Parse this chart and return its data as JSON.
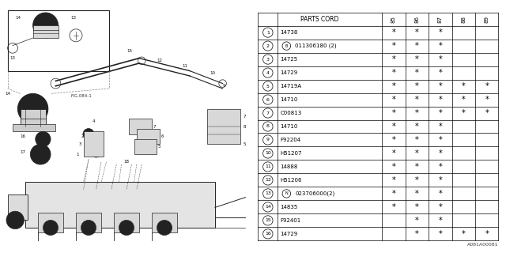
{
  "table_header_label": "PARTS CORD",
  "years": [
    "85",
    "86",
    "87",
    "88",
    "89"
  ],
  "rows": [
    {
      "num": "1",
      "prefix": "",
      "part": "14738",
      "stars": [
        1,
        1,
        1,
        0,
        0
      ]
    },
    {
      "num": "2",
      "prefix": "B",
      "part": "011306180 (2)",
      "stars": [
        1,
        1,
        1,
        0,
        0
      ]
    },
    {
      "num": "3",
      "prefix": "",
      "part": "14725",
      "stars": [
        1,
        1,
        1,
        0,
        0
      ]
    },
    {
      "num": "4",
      "prefix": "",
      "part": "14729",
      "stars": [
        1,
        1,
        1,
        0,
        0
      ]
    },
    {
      "num": "5",
      "prefix": "",
      "part": "14719A",
      "stars": [
        1,
        1,
        1,
        1,
        1
      ]
    },
    {
      "num": "6",
      "prefix": "",
      "part": "14710",
      "stars": [
        1,
        1,
        1,
        1,
        1
      ]
    },
    {
      "num": "7",
      "prefix": "",
      "part": "C00813",
      "stars": [
        1,
        1,
        1,
        1,
        1
      ]
    },
    {
      "num": "8",
      "prefix": "",
      "part": "14710",
      "stars": [
        1,
        1,
        1,
        0,
        0
      ]
    },
    {
      "num": "9",
      "prefix": "",
      "part": "F92204",
      "stars": [
        1,
        1,
        1,
        0,
        0
      ]
    },
    {
      "num": "10",
      "prefix": "",
      "part": "H51207",
      "stars": [
        1,
        1,
        1,
        0,
        0
      ]
    },
    {
      "num": "11",
      "prefix": "",
      "part": "14888",
      "stars": [
        1,
        1,
        1,
        0,
        0
      ]
    },
    {
      "num": "12",
      "prefix": "",
      "part": "H51206",
      "stars": [
        1,
        1,
        1,
        0,
        0
      ]
    },
    {
      "num": "13",
      "prefix": "N",
      "part": "023706000(2)",
      "stars": [
        1,
        1,
        1,
        0,
        0
      ]
    },
    {
      "num": "14",
      "prefix": "",
      "part": "14835",
      "stars": [
        1,
        1,
        1,
        0,
        0
      ]
    },
    {
      "num": "15",
      "prefix": "",
      "part": "F92401",
      "stars": [
        0,
        1,
        1,
        0,
        0
      ]
    },
    {
      "num": "16",
      "prefix": "",
      "part": "14729",
      "stars": [
        0,
        1,
        1,
        1,
        1
      ]
    }
  ],
  "footer": "A081A00081",
  "bg_color": "#ffffff",
  "text_color": "#000000",
  "line_color": "#000000",
  "fig_label": "FIG.084-1"
}
